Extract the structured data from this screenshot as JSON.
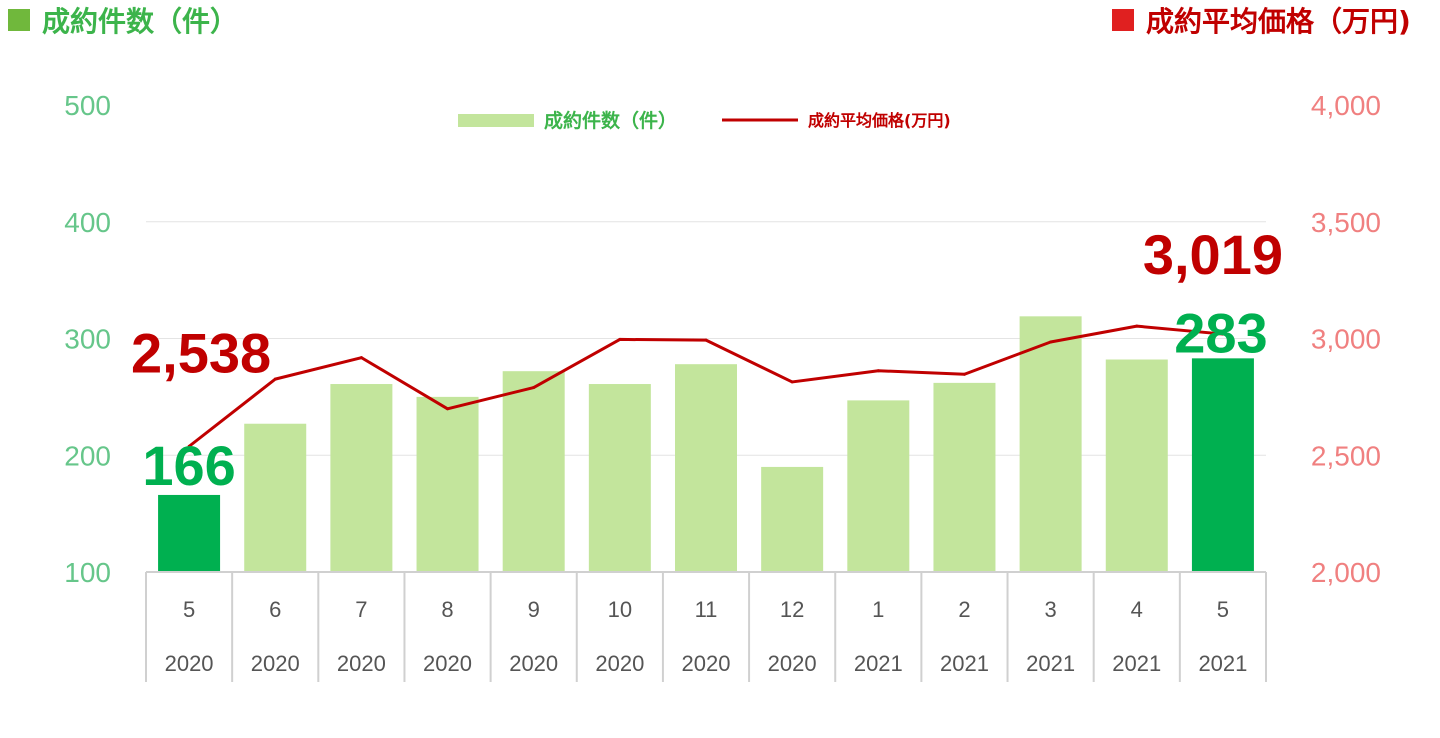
{
  "header": {
    "left_title": "成約件数（件）",
    "right_title": "成約平均価格（万円)"
  },
  "legend": {
    "bar_label": "成約件数（件）",
    "line_label": "成約平均価格(万円)"
  },
  "colors": {
    "bar": "#c3e59c",
    "bar_highlight": "#00b050",
    "line": "#c00000",
    "left_axis": "#66c68a",
    "right_axis": "#f08080",
    "left_title": "#3cb44b",
    "left_square": "#70b83c",
    "right_title": "#c00000",
    "right_square": "#e02020",
    "grid": "#e4e4e4",
    "cat_border": "#d0d0d0"
  },
  "chart_data": {
    "type": "bar",
    "categories": [
      {
        "month": "5",
        "year": "2020"
      },
      {
        "month": "6",
        "year": "2020"
      },
      {
        "month": "7",
        "year": "2020"
      },
      {
        "month": "8",
        "year": "2020"
      },
      {
        "month": "9",
        "year": "2020"
      },
      {
        "month": "10",
        "year": "2020"
      },
      {
        "month": "11",
        "year": "2020"
      },
      {
        "month": "12",
        "year": "2020"
      },
      {
        "month": "1",
        "year": "2021"
      },
      {
        "month": "2",
        "year": "2021"
      },
      {
        "month": "3",
        "year": "2021"
      },
      {
        "month": "4",
        "year": "2021"
      },
      {
        "month": "5",
        "year": "2021"
      }
    ],
    "series": [
      {
        "name": "成約件数（件）",
        "type": "bar",
        "axis": "left",
        "values": [
          166,
          227,
          261,
          250,
          272,
          261,
          278,
          190,
          247,
          262,
          319,
          282,
          283
        ],
        "highlight": [
          0,
          12
        ]
      },
      {
        "name": "成約平均価格(万円)",
        "type": "line",
        "axis": "right",
        "values": [
          2538,
          2826,
          2918,
          2699,
          2790,
          2996,
          2993,
          2814,
          2862,
          2847,
          2985,
          3053,
          3019
        ]
      }
    ],
    "left_axis": {
      "min": 100,
      "max": 500,
      "ticks": [
        "100",
        "200",
        "300",
        "400",
        "500"
      ]
    },
    "right_axis": {
      "min": 2000,
      "max": 4000,
      "ticks": [
        "2,000",
        "2,500",
        "3,000",
        "3,500",
        "4,000"
      ]
    },
    "callouts": {
      "first_bar": "166",
      "last_bar": "283",
      "first_line": "2,538",
      "last_line": "3,019"
    },
    "grid": true,
    "legend_position": "top-center"
  }
}
